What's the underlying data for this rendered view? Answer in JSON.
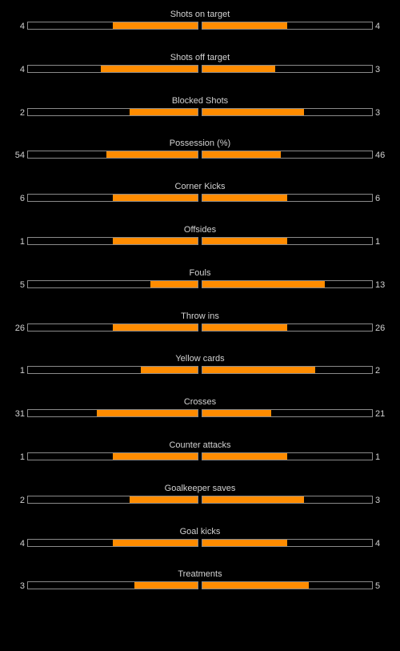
{
  "theme": {
    "background": "#000000",
    "bar_fill": "#ff8c00",
    "bar_border": "#8a8a8a",
    "text": "#d2d2d2"
  },
  "stats": [
    {
      "label": "Shots on target",
      "home": "4",
      "away": "4",
      "home_share": 0.5,
      "away_share": 0.5
    },
    {
      "label": "Shots off target",
      "home": "4",
      "away": "3",
      "home_share": 0.571,
      "away_share": 0.429
    },
    {
      "label": "Blocked Shots",
      "home": "2",
      "away": "3",
      "home_share": 0.4,
      "away_share": 0.6
    },
    {
      "label": "Possession (%)",
      "home": "54",
      "away": "46",
      "home_share": 0.54,
      "away_share": 0.46
    },
    {
      "label": "Corner Kicks",
      "home": "6",
      "away": "6",
      "home_share": 0.5,
      "away_share": 0.5
    },
    {
      "label": "Offsides",
      "home": "1",
      "away": "1",
      "home_share": 0.5,
      "away_share": 0.5
    },
    {
      "label": "Fouls",
      "home": "5",
      "away": "13",
      "home_share": 0.278,
      "away_share": 0.722
    },
    {
      "label": "Throw ins",
      "home": "26",
      "away": "26",
      "home_share": 0.5,
      "away_share": 0.5
    },
    {
      "label": "Yellow cards",
      "home": "1",
      "away": "2",
      "home_share": 0.333,
      "away_share": 0.667
    },
    {
      "label": "Crosses",
      "home": "31",
      "away": "21",
      "home_share": 0.596,
      "away_share": 0.404
    },
    {
      "label": "Counter attacks",
      "home": "1",
      "away": "1",
      "home_share": 0.5,
      "away_share": 0.5
    },
    {
      "label": "Goalkeeper saves",
      "home": "2",
      "away": "3",
      "home_share": 0.4,
      "away_share": 0.6
    },
    {
      "label": "Goal kicks",
      "home": "4",
      "away": "4",
      "home_share": 0.5,
      "away_share": 0.5
    },
    {
      "label": "Treatments",
      "home": "3",
      "away": "5",
      "home_share": 0.375,
      "away_share": 0.625
    }
  ]
}
